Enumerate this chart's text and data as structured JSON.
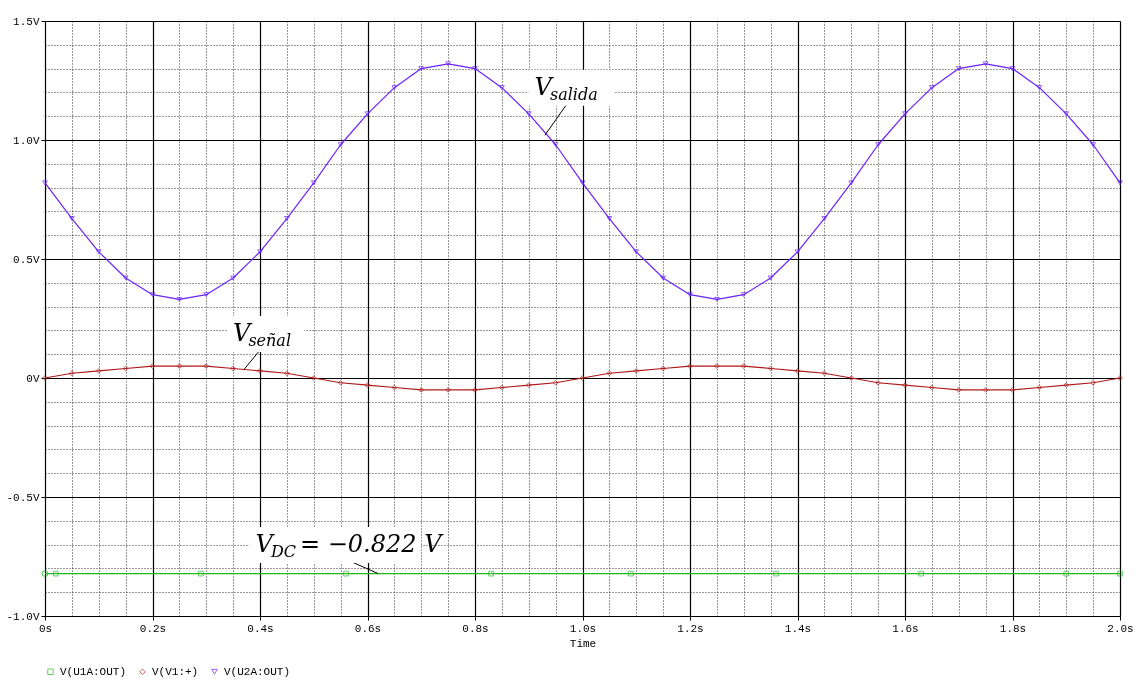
{
  "chart_data": {
    "type": "line",
    "xlabel": "Time",
    "xlim": [
      0,
      2
    ],
    "ylim": [
      -1,
      1.5
    ],
    "xticks": [
      {
        "value": 0,
        "label": "0s"
      },
      {
        "value": 0.05,
        "label": null
      },
      {
        "value": 0.1,
        "label": null
      },
      {
        "value": 0.15,
        "label": null
      },
      {
        "value": 0.2,
        "label": "0.2s"
      },
      {
        "value": 0.25,
        "label": null
      },
      {
        "value": 0.3,
        "label": null
      },
      {
        "value": 0.35,
        "label": null
      },
      {
        "value": 0.4,
        "label": "0.4s"
      },
      {
        "value": 0.45,
        "label": null
      },
      {
        "value": 0.5,
        "label": null
      },
      {
        "value": 0.55,
        "label": null
      },
      {
        "value": 0.6,
        "label": "0.6s"
      },
      {
        "value": 0.65,
        "label": null
      },
      {
        "value": 0.7,
        "label": null
      },
      {
        "value": 0.75,
        "label": null
      },
      {
        "value": 0.8,
        "label": "0.8s"
      },
      {
        "value": 0.85,
        "label": null
      },
      {
        "value": 0.9,
        "label": null
      },
      {
        "value": 0.95,
        "label": null
      },
      {
        "value": 1,
        "label": "1.0s"
      },
      {
        "value": 1.05,
        "label": null
      },
      {
        "value": 1.1,
        "label": null
      },
      {
        "value": 1.15,
        "label": null
      },
      {
        "value": 1.2,
        "label": "1.2s"
      },
      {
        "value": 1.25,
        "label": null
      },
      {
        "value": 1.3,
        "label": null
      },
      {
        "value": 1.35,
        "label": null
      },
      {
        "value": 1.4,
        "label": "1.4s"
      },
      {
        "value": 1.45,
        "label": null
      },
      {
        "value": 1.5,
        "label": null
      },
      {
        "value": 1.55,
        "label": null
      },
      {
        "value": 1.6,
        "label": "1.6s"
      },
      {
        "value": 1.65,
        "label": null
      },
      {
        "value": 1.7,
        "label": null
      },
      {
        "value": 1.75,
        "label": null
      },
      {
        "value": 1.8,
        "label": "1.8s"
      },
      {
        "value": 1.85,
        "label": null
      },
      {
        "value": 1.9,
        "label": null
      },
      {
        "value": 1.95,
        "label": null
      },
      {
        "value": 2,
        "label": "2.0s"
      }
    ],
    "yticks": [
      {
        "value": -1,
        "label": "-1.0V"
      },
      {
        "value": -0.9,
        "label": null
      },
      {
        "value": -0.8,
        "label": null
      },
      {
        "value": -0.7,
        "label": null
      },
      {
        "value": -0.6,
        "label": null
      },
      {
        "value": -0.5,
        "label": "-0.5V"
      },
      {
        "value": -0.4,
        "label": null
      },
      {
        "value": -0.3,
        "label": null
      },
      {
        "value": -0.2,
        "label": null
      },
      {
        "value": -0.1,
        "label": null
      },
      {
        "value": 0,
        "label": "0V"
      },
      {
        "value": 0.1,
        "label": null
      },
      {
        "value": 0.2,
        "label": null
      },
      {
        "value": 0.3,
        "label": null
      },
      {
        "value": 0.4,
        "label": null
      },
      {
        "value": 0.5,
        "label": "0.5V"
      },
      {
        "value": 0.6,
        "label": null
      },
      {
        "value": 0.7,
        "label": null
      },
      {
        "value": 0.8,
        "label": null
      },
      {
        "value": 0.9,
        "label": null
      },
      {
        "value": 1,
        "label": "1.0V"
      },
      {
        "value": 1.1,
        "label": null
      },
      {
        "value": 1.2,
        "label": null
      },
      {
        "value": 1.3,
        "label": null
      },
      {
        "value": 1.4,
        "label": null
      },
      {
        "value": 1.5,
        "label": "1.5V"
      }
    ],
    "x": [
      0,
      0.05,
      0.1,
      0.15,
      0.2,
      0.25,
      0.3,
      0.35,
      0.4,
      0.45,
      0.5,
      0.55,
      0.6,
      0.65,
      0.7,
      0.75,
      0.8,
      0.85,
      0.9,
      0.95,
      1,
      1.05,
      1.1,
      1.15,
      1.2,
      1.25,
      1.3,
      1.35,
      1.4,
      1.45,
      1.5,
      1.55,
      1.6,
      1.65,
      1.7,
      1.75,
      1.8,
      1.85,
      1.9,
      1.95,
      2
    ],
    "grid": true,
    "legend": "bottom",
    "line_style": "solid",
    "series": [
      {
        "name": "V(U1A:OUT)",
        "color": "#22b822",
        "marker": "square",
        "x": [
          0,
          0.02,
          0.29,
          0.56,
          0.83,
          1.09,
          1.36,
          1.63,
          1.9,
          2
        ],
        "values": [
          -0.822,
          -0.822,
          -0.822,
          -0.822,
          -0.822,
          -0.822,
          -0.822,
          -0.822,
          -0.822,
          -0.822
        ]
      },
      {
        "name": "V(V1:+)",
        "color": "#b01818",
        "marker": "diamond",
        "values": [
          0,
          0.02,
          0.03,
          0.04,
          0.05,
          0.05,
          0.05,
          0.04,
          0.03,
          0.02,
          0,
          -0.02,
          -0.03,
          -0.04,
          -0.05,
          -0.05,
          -0.05,
          -0.04,
          -0.03,
          -0.02,
          0,
          0.02,
          0.03,
          0.04,
          0.05,
          0.05,
          0.05,
          0.04,
          0.03,
          0.02,
          0,
          -0.02,
          -0.03,
          -0.04,
          -0.05,
          -0.05,
          -0.05,
          -0.04,
          -0.03,
          -0.02,
          0
        ]
      },
      {
        "name": "V(U2A:OUT)",
        "color": "#6a22ff",
        "marker": "triangle",
        "values": [
          0.82,
          0.67,
          0.53,
          0.42,
          0.35,
          0.33,
          0.35,
          0.42,
          0.53,
          0.67,
          0.82,
          0.98,
          1.11,
          1.22,
          1.3,
          1.32,
          1.3,
          1.22,
          1.11,
          0.98,
          0.82,
          0.67,
          0.53,
          0.42,
          0.35,
          0.33,
          0.35,
          0.42,
          0.53,
          0.67,
          0.82,
          0.98,
          1.11,
          1.22,
          1.3,
          1.32,
          1.3,
          1.22,
          1.11,
          0.98,
          0.82
        ]
      }
    ],
    "annotations": [
      {
        "text": "V$_{salida}$",
        "x": 0.93,
        "y": 1.02
      },
      {
        "text": "V$_{señal}$",
        "x": 0.37,
        "y": 0.035
      },
      {
        "text": "V$_{DC}$ = −0.822 V",
        "x": 0.62,
        "y": -0.822
      }
    ]
  }
}
